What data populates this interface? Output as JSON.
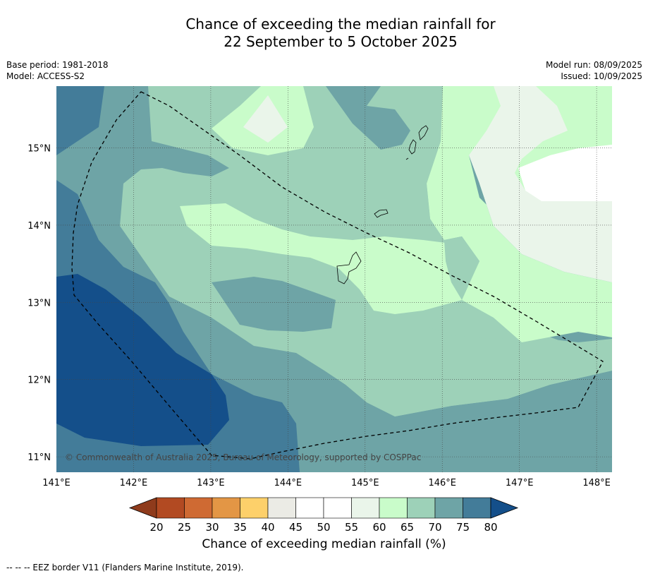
{
  "title": {
    "line1": "Chance of exceeding the median rainfall for",
    "line2": "22 September to 5 October 2025"
  },
  "meta": {
    "base_period": "Base period: 1981-2018",
    "model": "Model: ACCESS-S2",
    "model_run": "Model run: 08/09/2025",
    "issued": "Issued: 10/09/2025"
  },
  "map": {
    "copyright": "© Commonwealth of Australia 2025, Bureau of Meteorology, supported by COSPPac",
    "lon_ticks": [
      "141°E",
      "142°E",
      "143°E",
      "144°E",
      "145°E",
      "146°E",
      "147°E",
      "148°E"
    ],
    "lat_ticks": [
      "15°N",
      "14°N",
      "13°N",
      "12°N",
      "11°N"
    ],
    "lon_values": [
      141,
      142,
      143,
      144,
      145,
      146,
      147,
      148
    ],
    "lat_values": [
      15,
      14,
      13,
      12,
      11
    ],
    "lon_range": [
      141,
      148.2
    ],
    "lat_range": [
      10.8,
      15.8
    ]
  },
  "colorbar": {
    "labels": [
      "20",
      "25",
      "30",
      "35",
      "40",
      "45",
      "50",
      "55",
      "60",
      "65",
      "70",
      "75",
      "80"
    ],
    "colors": [
      "#8f3b1c",
      "#b24a22",
      "#cf6a33",
      "#e39645",
      "#fdd06a",
      "#ebebe5",
      "#ffffff",
      "#ffffff",
      "#eaf5ea",
      "#c9fcca",
      "#9dd1b8",
      "#6ea4a6",
      "#437c99",
      "#144f8a"
    ],
    "title": "Chance of exceeding median rainfall (%)"
  },
  "legend": {
    "eez": "--  --  -- EEZ border V11 (Flanders Marine Institute, 2019)."
  }
}
